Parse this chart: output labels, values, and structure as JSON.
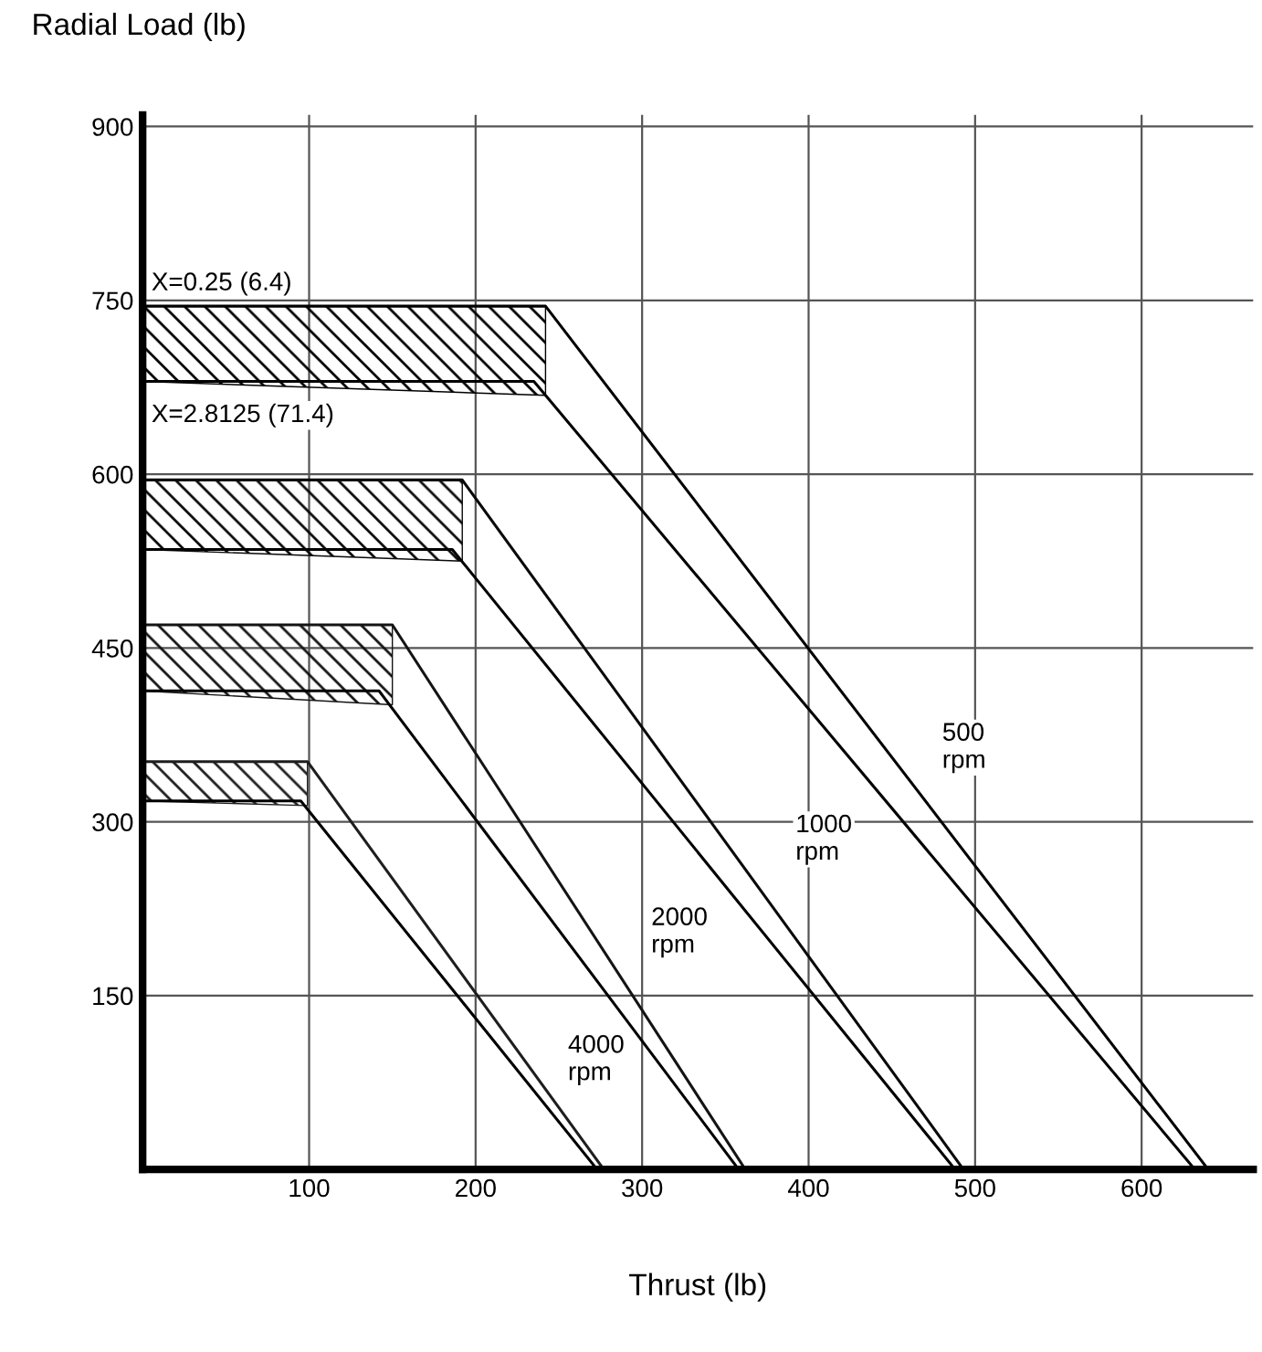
{
  "chart_data": {
    "type": "line",
    "xlabel": "Thrust (lb)",
    "ylabel": "Radial Load (lb)",
    "xlim": [
      0,
      667
    ],
    "ylim": [
      0,
      910
    ],
    "xticks": [
      100,
      200,
      300,
      400,
      500,
      600
    ],
    "yticks": [
      150,
      300,
      450,
      600,
      750,
      900
    ],
    "grid": true,
    "marker": "none",
    "line_style": "solid",
    "series": [
      {
        "color": "#000000",
        "x": [
          0,
          242,
          640
        ],
        "values": [
          745,
          745,
          0
        ],
        "upper": [
          745,
          745,
          null
        ],
        "lower": [
          680,
          668,
          null
        ]
      },
      {
        "color": "#000000",
        "x": [
          0,
          235,
          632
        ],
        "values": [
          680,
          680,
          0
        ]
      },
      {
        "color": "#0a0a0a",
        "x": [
          0,
          192,
          493
        ],
        "values": [
          595,
          595,
          0
        ],
        "upper": [
          595,
          595,
          null
        ],
        "lower": [
          535,
          525,
          null
        ]
      },
      {
        "color": "#000000",
        "x": [
          0,
          186,
          488
        ],
        "values": [
          535,
          535,
          0
        ]
      },
      {
        "color": "#141414",
        "x": [
          0,
          150,
          362
        ],
        "values": [
          470,
          470,
          0
        ],
        "upper": [
          470,
          470,
          null
        ],
        "lower": [
          413,
          401,
          null
        ]
      },
      {
        "color": "#000000",
        "x": [
          0,
          142,
          358
        ],
        "values": [
          413,
          413,
          0
        ]
      },
      {
        "color": "#1e1e1e",
        "x": [
          0,
          99,
          277
        ],
        "values": [
          352,
          352,
          0
        ],
        "upper": [
          352,
          352,
          null
        ],
        "lower": [
          318,
          314,
          null
        ]
      },
      {
        "color": "#000000",
        "x": [
          0,
          95,
          273
        ],
        "values": [
          318,
          318,
          0
        ]
      }
    ],
    "annotations": [
      "X=0.25 (6.4)",
      "X=2.8125 (71.4)",
      "500\nrpm",
      "1000\nrpm",
      "2000\nrpm",
      "4000\nrpm"
    ]
  }
}
